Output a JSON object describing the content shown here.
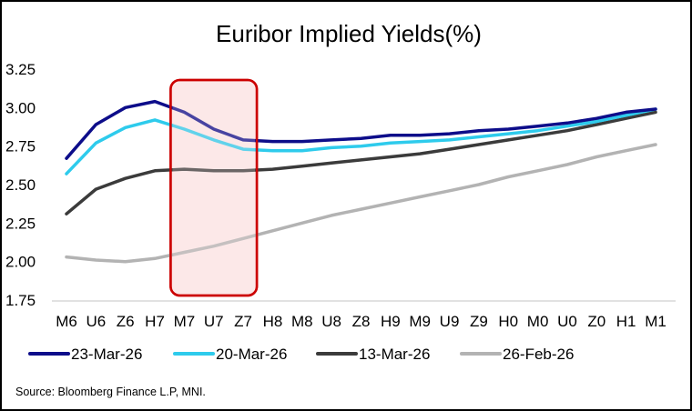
{
  "chart_data": {
    "type": "line",
    "title": "Euribor Implied Yields(%)",
    "xlabel": "",
    "ylabel": "",
    "ylim": [
      1.75,
      3.25
    ],
    "yticks": [
      "3.25",
      "3.00",
      "2.75",
      "2.50",
      "2.25",
      "2.00",
      "1.75"
    ],
    "ytick_values": [
      3.25,
      3.0,
      2.75,
      2.5,
      2.25,
      2.0,
      1.75
    ],
    "categories": [
      "M6",
      "U6",
      "Z6",
      "H7",
      "M7",
      "U7",
      "Z7",
      "H8",
      "M8",
      "U8",
      "Z8",
      "H9",
      "M9",
      "U9",
      "Z9",
      "H0",
      "M0",
      "U0",
      "Z0",
      "H1",
      "M1"
    ],
    "series": [
      {
        "name": "23-Mar-26",
        "color": "#0d0d8a",
        "values": [
          2.67,
          2.89,
          3.0,
          3.04,
          2.97,
          2.86,
          2.79,
          2.78,
          2.78,
          2.79,
          2.8,
          2.82,
          2.82,
          2.83,
          2.85,
          2.86,
          2.88,
          2.9,
          2.93,
          2.97,
          2.99
        ]
      },
      {
        "name": "20-Mar-26",
        "color": "#2ecbec",
        "values": [
          2.57,
          2.77,
          2.87,
          2.92,
          2.86,
          2.79,
          2.73,
          2.72,
          2.72,
          2.74,
          2.75,
          2.77,
          2.78,
          2.79,
          2.81,
          2.83,
          2.85,
          2.88,
          2.91,
          2.95,
          2.99
        ]
      },
      {
        "name": "13-Mar-26",
        "color": "#3b3b3b",
        "values": [
          2.31,
          2.47,
          2.54,
          2.59,
          2.6,
          2.59,
          2.59,
          2.6,
          2.62,
          2.64,
          2.66,
          2.68,
          2.7,
          2.73,
          2.76,
          2.79,
          2.82,
          2.85,
          2.89,
          2.93,
          2.97
        ]
      },
      {
        "name": "26-Feb-26",
        "color": "#b3b3b3",
        "values": [
          2.03,
          2.01,
          2.0,
          2.02,
          2.06,
          2.1,
          2.15,
          2.2,
          2.25,
          2.3,
          2.34,
          2.38,
          2.42,
          2.46,
          2.5,
          2.55,
          2.59,
          2.63,
          2.68,
          2.72,
          2.76
        ]
      }
    ],
    "highlight": {
      "from_category": "M7",
      "to_category": "Z7",
      "border_color": "#cc0000",
      "fill_color": "#fde8e8"
    },
    "grid": false,
    "legend_position": "bottom"
  },
  "source": "Source: Bloomberg Finance L.P, MNI."
}
